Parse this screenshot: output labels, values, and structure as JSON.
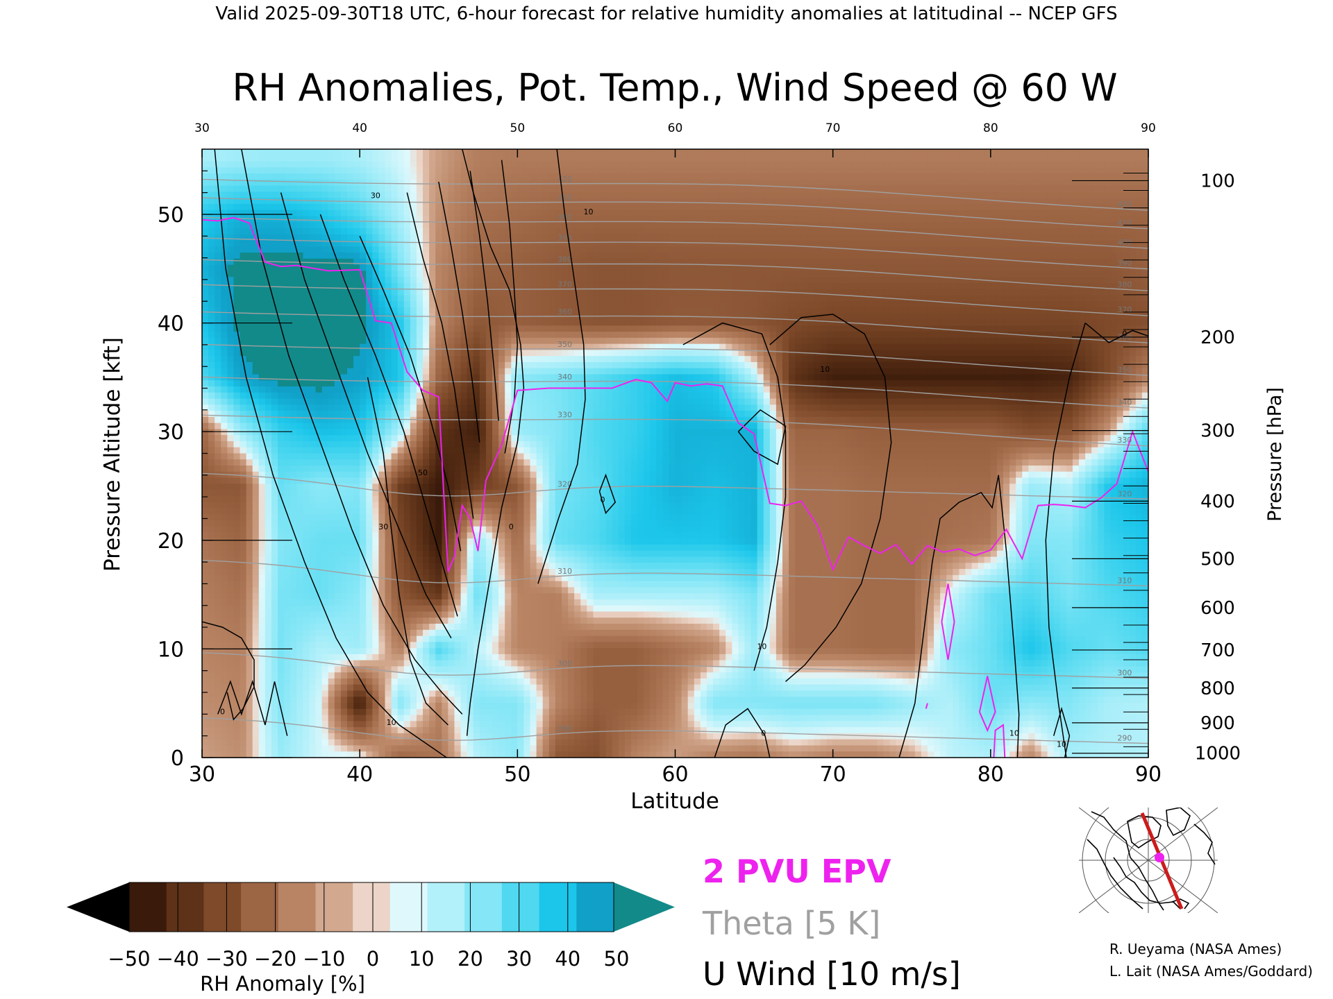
{
  "header": {
    "valid_line": "Valid 2025-09-30T18 UTC, 6-hour forecast for relative humidity anomalies at latitudinal -- NCEP GFS"
  },
  "chart_data": {
    "type": "heatmap",
    "title": "RH Anomalies, Pot. Temp., Wind Speed @ 60 W",
    "xlabel": "Latitude",
    "ylabel_left": "Pressure Altitude [kft]",
    "ylabel_right": "Pressure [hPa]",
    "xlim": [
      30,
      90
    ],
    "ylim": [
      0,
      56
    ],
    "x_ticks": [
      "30",
      "40",
      "50",
      "60",
      "70",
      "80",
      "90"
    ],
    "y_ticks": [
      "0",
      "10",
      "20",
      "30",
      "40",
      "50"
    ],
    "pressure_ticks": [
      {
        "label": "100",
        "kft": 53.1
      },
      {
        "label": "200",
        "kft": 38.7
      },
      {
        "label": "300",
        "kft": 30.1
      },
      {
        "label": "400",
        "kft": 23.6
      },
      {
        "label": "500",
        "kft": 18.3
      },
      {
        "label": "600",
        "kft": 13.8
      },
      {
        "label": "700",
        "kft": 9.9
      },
      {
        "label": "800",
        "kft": 6.4
      },
      {
        "label": "900",
        "kft": 3.2
      },
      {
        "label": "1000",
        "kft": 0.4
      }
    ],
    "colorbar": {
      "label": "RH Anomaly [%]",
      "ticks": [
        "−50",
        "−40",
        "−30",
        "−20",
        "−10",
        "0",
        "10",
        "20",
        "30",
        "40",
        "50"
      ],
      "colors": [
        "#3a1a0a",
        "#5e3218",
        "#7e4a2a",
        "#9c6544",
        "#b88464",
        "#d2a88e",
        "#ecd5c8",
        "#dff8fb",
        "#b2f0fa",
        "#84e6f6",
        "#4fd8f0",
        "#1cc6ea",
        "#10a0c8"
      ],
      "under_color": "#000000",
      "over_color": "#128a8a"
    },
    "legend": {
      "epv": "2 PVU EPV",
      "theta": "Theta [5 K]",
      "uwind": "U Wind [10 m/s]",
      "epv_color": "#ee22ee",
      "theta_color": "#a0a0a0",
      "uwind_color": "#000000"
    },
    "rh_grid": {
      "lat": [
        30,
        32.5,
        35,
        37.5,
        40,
        42.5,
        45,
        47.5,
        50,
        52.5,
        55,
        57.5,
        60,
        62.5,
        65,
        67.5,
        70,
        72.5,
        75,
        77.5,
        80,
        82.5,
        85,
        87.5,
        90
      ],
      "kft": [
        55,
        50,
        45,
        40,
        35,
        30,
        25,
        20,
        15,
        10,
        5,
        0
      ],
      "anom": [
        [
          12,
          14,
          15,
          15,
          12,
          5,
          -5,
          -12,
          -13,
          -13,
          -13,
          -13,
          -13,
          -13,
          -13,
          -13,
          -13,
          -13,
          -13,
          -13,
          -13,
          -13,
          -13,
          -13,
          -13
        ],
        [
          38,
          45,
          45,
          40,
          30,
          12,
          -8,
          -16,
          -18,
          -20,
          -20,
          -20,
          -20,
          -20,
          -20,
          -20,
          -20,
          -20,
          -20,
          -20,
          -20,
          -20,
          -20,
          -20,
          -20
        ],
        [
          45,
          55,
          55,
          55,
          55,
          22,
          -10,
          -20,
          -22,
          -24,
          -26,
          -26,
          -25,
          -25,
          -25,
          -25,
          -25,
          -25,
          -25,
          -25,
          -25,
          -25,
          -25,
          -25,
          -22
        ],
        [
          40,
          55,
          55,
          55,
          55,
          40,
          -10,
          -25,
          -22,
          -24,
          -26,
          -26,
          -24,
          -24,
          -26,
          -30,
          -32,
          -32,
          -32,
          -32,
          -32,
          -32,
          -32,
          -30,
          -28
        ],
        [
          30,
          50,
          55,
          55,
          50,
          40,
          -20,
          -40,
          18,
          22,
          28,
          35,
          42,
          38,
          10,
          -40,
          -48,
          -48,
          -48,
          -48,
          -48,
          -48,
          -46,
          -30,
          -10
        ],
        [
          -20,
          15,
          35,
          42,
          40,
          12,
          -40,
          -48,
          15,
          20,
          30,
          35,
          45,
          45,
          45,
          -20,
          -20,
          -22,
          -22,
          -22,
          -22,
          -28,
          -26,
          -5,
          30
        ],
        [
          -25,
          -25,
          25,
          18,
          20,
          -35,
          -50,
          -35,
          -25,
          22,
          28,
          38,
          45,
          42,
          45,
          -16,
          -16,
          -18,
          -18,
          -18,
          -18,
          15,
          10,
          40,
          45
        ],
        [
          -15,
          -20,
          20,
          25,
          25,
          -30,
          -50,
          15,
          -18,
          25,
          30,
          40,
          40,
          40,
          45,
          -16,
          -16,
          -18,
          -18,
          -16,
          -14,
          20,
          20,
          35,
          40
        ],
        [
          -12,
          -16,
          22,
          25,
          18,
          -25,
          -38,
          25,
          -10,
          -12,
          12,
          12,
          12,
          12,
          22,
          -16,
          -16,
          -18,
          -18,
          5,
          25,
          30,
          22,
          30,
          35
        ],
        [
          -10,
          -12,
          22,
          10,
          14,
          -12,
          30,
          8,
          -10,
          -12,
          -22,
          -22,
          -16,
          -10,
          14,
          -16,
          -16,
          -18,
          -18,
          18,
          25,
          40,
          30,
          25,
          30
        ],
        [
          -8,
          -10,
          20,
          5,
          -50,
          20,
          -10,
          20,
          20,
          -10,
          -22,
          -22,
          -10,
          20,
          20,
          22,
          22,
          22,
          15,
          10,
          25,
          18,
          20,
          12,
          10
        ],
        [
          -5,
          -8,
          15,
          5,
          5,
          -20,
          -15,
          10,
          18,
          -25,
          -28,
          -10,
          -5,
          -12,
          -15,
          -8,
          -12,
          -12,
          -5,
          8,
          10,
          -10,
          12,
          10,
          10
        ]
      ]
    },
    "epv_2pvu": {
      "lat": [
        30,
        31,
        32,
        33,
        34,
        35,
        36,
        38,
        40,
        41,
        42,
        43,
        44,
        45,
        45.3,
        45.6,
        46,
        46.5,
        47,
        47.5,
        48,
        49,
        50,
        52,
        54,
        56,
        57.5,
        58.5,
        59.5,
        60,
        61,
        62,
        63,
        64,
        64.5,
        65,
        66,
        67,
        68,
        69,
        70,
        71,
        72,
        73,
        74,
        75,
        76,
        77,
        78,
        79,
        80,
        81,
        82,
        83,
        84,
        85,
        86,
        87,
        88,
        89,
        90
      ],
      "kft": [
        49.5,
        49.4,
        49.7,
        49.2,
        45.6,
        45.2,
        45.3,
        44.8,
        44.9,
        40.2,
        40,
        35.5,
        33.8,
        33.2,
        25,
        17.1,
        18.5,
        23.2,
        22,
        19,
        25.5,
        28.8,
        33.8,
        34,
        34,
        34,
        34.8,
        34.5,
        32.8,
        34.5,
        34.2,
        34.4,
        34.2,
        30.8,
        30.3,
        29.8,
        23.4,
        23.2,
        23.6,
        21.4,
        17.3,
        20.3,
        19.5,
        18.8,
        19.6,
        17.8,
        19.5,
        18.9,
        19.2,
        18.6,
        19.1,
        21,
        18.3,
        23.2,
        23.3,
        23.2,
        23,
        23.9,
        25.2,
        30,
        26.3
      ]
    },
    "theta_levels": [
      "290",
      "300",
      "310",
      "320",
      "330",
      "340",
      "350",
      "360",
      "370",
      "380",
      "390",
      "400",
      "410",
      "420"
    ],
    "uwind_labels": [
      "30",
      "50",
      "30",
      "10",
      "10",
      "0",
      "0",
      "0",
      "10",
      "10",
      "0",
      "10",
      "0",
      "10"
    ],
    "locator": {
      "credits": [
        "R. Ueyama (NASA Ames)",
        "L. Lait (NASA Ames/Goddard)"
      ],
      "track_color": "#cc1b1b",
      "point_color": "#ee22ee"
    }
  }
}
